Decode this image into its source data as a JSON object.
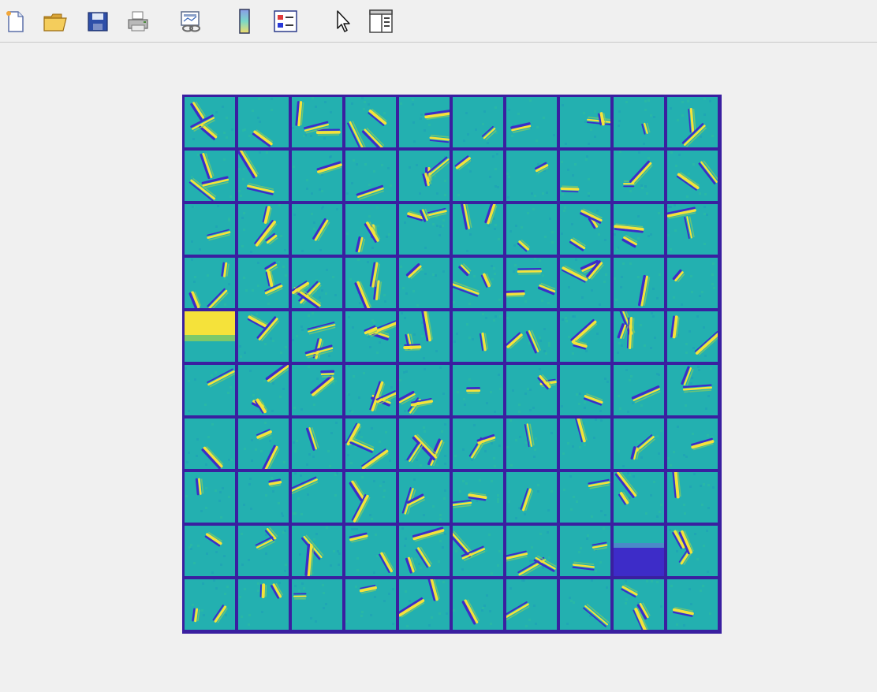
{
  "window": {
    "background": "#f0f0f0"
  },
  "toolbar": {
    "buttons": [
      {
        "name": "new-figure-button",
        "icon": "new-document-icon"
      },
      {
        "name": "open-file-button",
        "icon": "folder-open-icon"
      },
      {
        "name": "save-figure-button",
        "icon": "floppy-disk-icon"
      },
      {
        "name": "print-figure-button",
        "icon": "printer-icon"
      },
      {
        "name": "link-plot-button",
        "icon": "link-plot-icon"
      },
      {
        "name": "insert-colorbar-button",
        "icon": "colorbar-icon"
      },
      {
        "name": "insert-legend-button",
        "icon": "legend-icon"
      },
      {
        "name": "edit-plot-button",
        "icon": "pointer-arrow-icon"
      },
      {
        "name": "property-inspector-button",
        "icon": "panel-icon"
      }
    ]
  },
  "mosaic": {
    "rows": 10,
    "cols": 10,
    "colors": {
      "border": "#3a1fa0",
      "base": "#23b0b0",
      "bright": "#f5e23a",
      "dark": "#3d2cc8",
      "mid": "#7cc96a"
    },
    "special_tiles": {
      "bright_block": [
        4,
        0
      ],
      "dark_block": [
        8,
        8
      ]
    }
  }
}
